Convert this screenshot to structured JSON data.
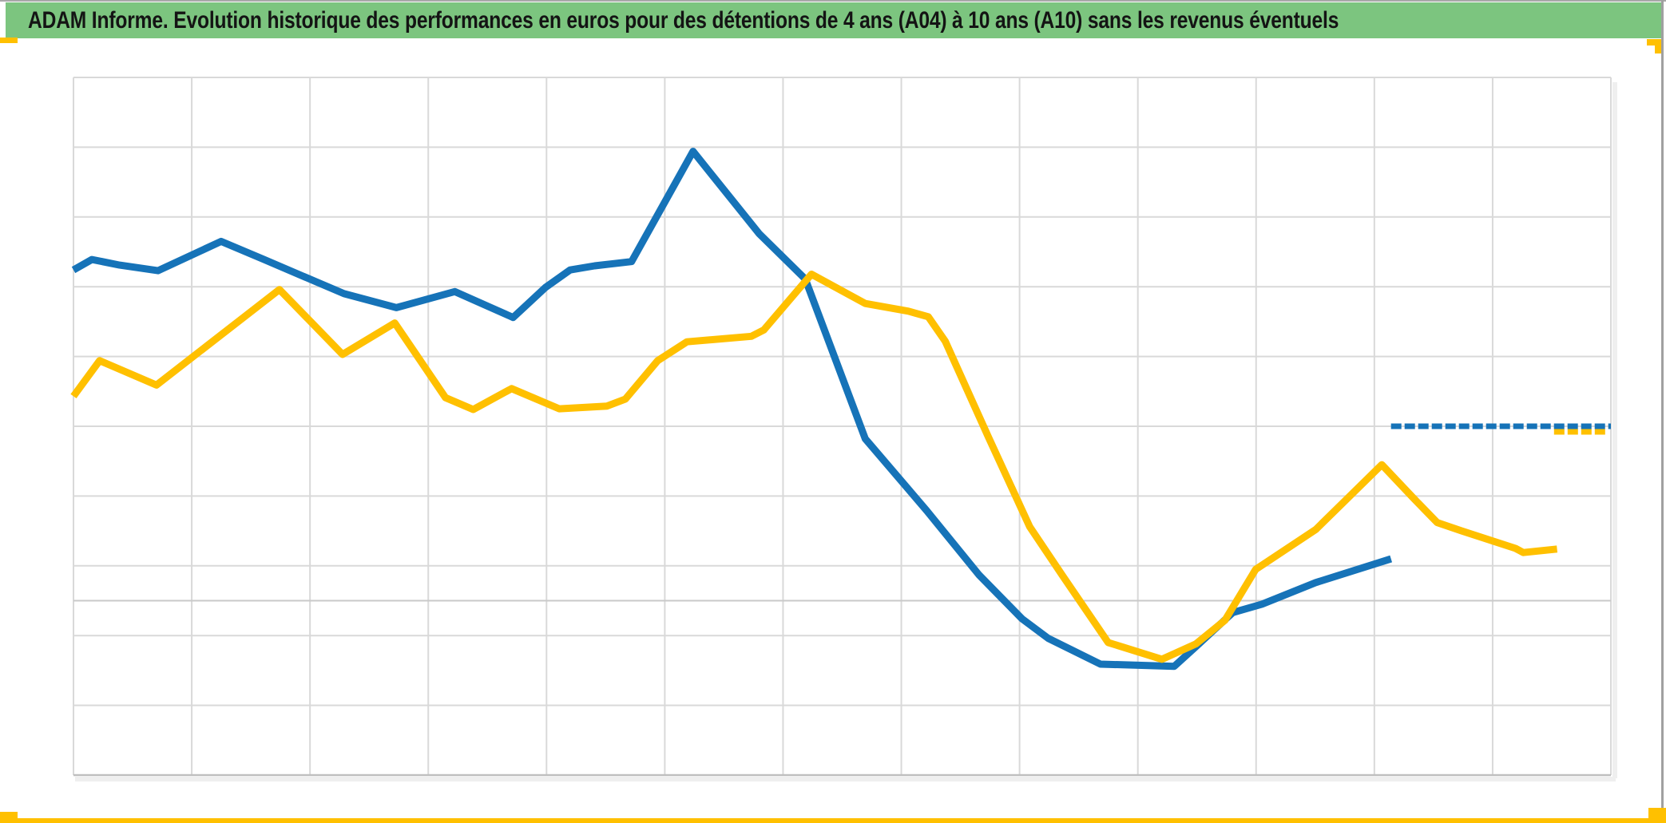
{
  "header": {
    "title": "ADAM Informe. Evolution historique des performances en euros pour des détentions de 4 ans (A04) à 10 ans (A10) sans les revenus éventuels"
  },
  "colors": {
    "header_bg": "#7CC57F",
    "header_text": "#141414",
    "series_blue": "#1673B8",
    "series_yellow": "#FFC000",
    "gridline": "#D9D9D9",
    "bottom_axis": "#BFBFBF",
    "category_axis_line": "#C9C9C9",
    "frame_gray": "#A5A5A5",
    "accent_bar": "#FFC000",
    "shadow": "#EFEFEF"
  },
  "chart_data": {
    "type": "line",
    "title": "",
    "xlabel": "",
    "ylabel": "",
    "legend": "none",
    "x_axis": {
      "tick_labels_visible": false,
      "vertical_gridlines": 14
    },
    "y_axis": {
      "tick_labels_visible": false,
      "horizontal_gridlines": 11,
      "units_bottom": 0,
      "units_top": 10,
      "category_axis_crossing_units": 2.5
    },
    "note": "No axis tick labels are visible in the chart. Points are given as [x fraction of plot width 0-1, y in horizontal-gridline units 0=bottom line, 10=top line].",
    "series": [
      {
        "name": "serie-bleue",
        "color_key": "blue",
        "style": "curve",
        "points": [
          [
            0.0,
            7.24
          ],
          [
            0.012,
            7.39
          ],
          [
            0.03,
            7.31
          ],
          [
            0.055,
            7.23
          ],
          [
            0.096,
            7.65
          ],
          [
            0.124,
            7.39
          ],
          [
            0.16,
            7.05
          ],
          [
            0.176,
            6.9
          ],
          [
            0.21,
            6.7
          ],
          [
            0.248,
            6.93
          ],
          [
            0.286,
            6.56
          ],
          [
            0.307,
            6.99
          ],
          [
            0.323,
            7.24
          ],
          [
            0.339,
            7.3
          ],
          [
            0.363,
            7.36
          ],
          [
            0.403,
            8.94
          ],
          [
            0.446,
            7.76
          ],
          [
            0.476,
            7.11
          ],
          [
            0.515,
            4.82
          ],
          [
            0.555,
            3.79
          ],
          [
            0.589,
            2.87
          ],
          [
            0.617,
            2.24
          ],
          [
            0.634,
            1.96
          ],
          [
            0.668,
            1.59
          ],
          [
            0.716,
            1.56
          ],
          [
            0.73,
            1.84
          ],
          [
            0.754,
            2.33
          ],
          [
            0.773,
            2.45
          ],
          [
            0.808,
            2.76
          ],
          [
            0.857,
            3.1
          ]
        ]
      },
      {
        "name": "serie-jaune",
        "color_key": "yellow",
        "style": "curve",
        "points": [
          [
            0.0,
            5.43
          ],
          [
            0.017,
            5.94
          ],
          [
            0.054,
            5.59
          ],
          [
            0.134,
            6.96
          ],
          [
            0.175,
            6.03
          ],
          [
            0.209,
            6.48
          ],
          [
            0.242,
            5.41
          ],
          [
            0.26,
            5.24
          ],
          [
            0.285,
            5.54
          ],
          [
            0.316,
            5.25
          ],
          [
            0.347,
            5.29
          ],
          [
            0.359,
            5.39
          ],
          [
            0.38,
            5.94
          ],
          [
            0.399,
            6.21
          ],
          [
            0.441,
            6.29
          ],
          [
            0.449,
            6.38
          ],
          [
            0.48,
            7.18
          ],
          [
            0.515,
            6.76
          ],
          [
            0.543,
            6.65
          ],
          [
            0.556,
            6.57
          ],
          [
            0.567,
            6.22
          ],
          [
            0.595,
            4.85
          ],
          [
            0.622,
            3.56
          ],
          [
            0.643,
            2.87
          ],
          [
            0.673,
            1.9
          ],
          [
            0.708,
            1.66
          ],
          [
            0.73,
            1.88
          ],
          [
            0.749,
            2.22
          ],
          [
            0.769,
            2.95
          ],
          [
            0.808,
            3.52
          ],
          [
            0.851,
            4.45
          ],
          [
            0.872,
            3.96
          ],
          [
            0.887,
            3.62
          ],
          [
            0.903,
            3.5
          ],
          [
            0.938,
            3.25
          ],
          [
            0.943,
            3.19
          ],
          [
            0.965,
            3.24
          ]
        ]
      },
      {
        "name": "segment-plat-jaune",
        "color_key": "yellow",
        "style": "flat",
        "points": [
          [
            0.963,
            4.92
          ],
          [
            0.997,
            4.92
          ]
        ]
      },
      {
        "name": "segment-plat-bleu",
        "color_key": "blue",
        "style": "flat",
        "points": [
          [
            0.857,
            5.0
          ],
          [
            1.0,
            5.0
          ]
        ]
      }
    ]
  }
}
